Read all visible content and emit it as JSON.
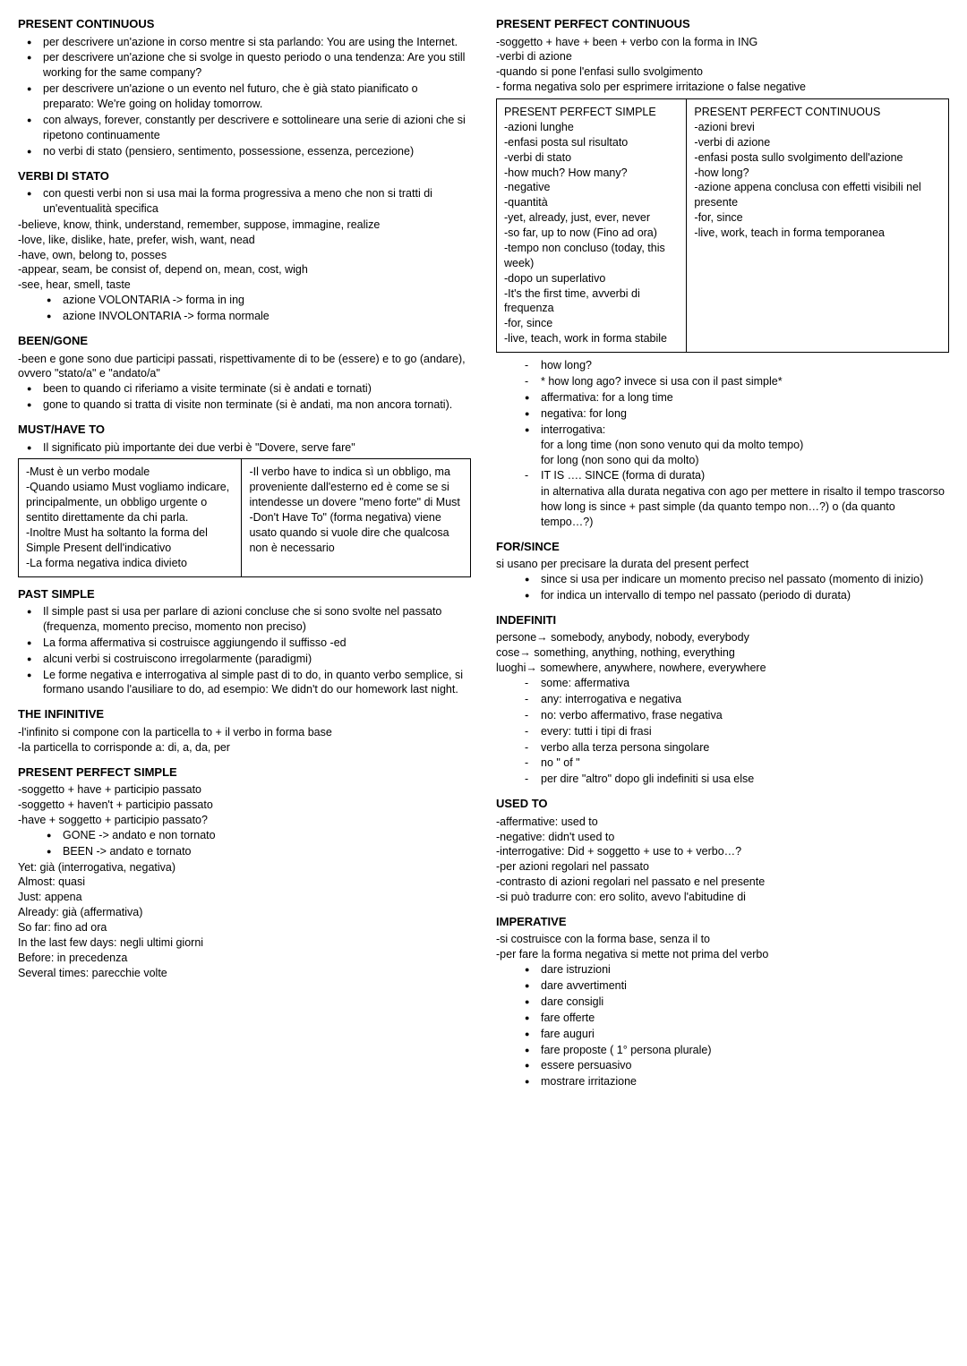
{
  "left": {
    "s1": {
      "h": "PRESENT CONTINUOUS",
      "li": [
        "per descrivere un'azione in corso mentre si sta parlando: You are using the Internet.",
        "per descrivere un'azione che si svolge in questo periodo o una tendenza: Are you still working for the same company?",
        "per descrivere un'azione o un evento nel futuro, che è già stato pianificato o preparato: We're going on holiday tomorrow.",
        "con always, forever, constantly per descrivere e sottolineare una serie di azioni che si ripetono continuamente",
        "no verbi di stato (pensiero, sentimento, possessione, essenza, percezione)"
      ]
    },
    "s2": {
      "h": "VERBI DI STATO",
      "li": [
        "con questi verbi non si usa mai la forma progressiva a meno che non si tratti di un'eventualità specifica"
      ],
      "p": [
        "-believe, know, think, understand, remember, suppose, immagine, realize",
        "-love, like, dislike, hate, prefer, wish, want, nead",
        "-have, own, belong to, posses",
        "-appear, seam, be consist of, depend on, mean, cost, wigh",
        "-see, hear, smell, taste"
      ],
      "li2": [
        "azione VOLONTARIA -> forma in ing",
        "azione INVOLONTARIA -> forma normale"
      ]
    },
    "s3": {
      "h": "BEEN/GONE",
      "p": [
        "-been e gone sono due participi passati, rispettivamente di to be (essere) e to go (andare), ovvero \"stato/a\" e \"andato/a\""
      ],
      "li": [
        "been to quando ci riferiamo a visite terminate (si è andati e tornati)",
        "gone to quando si tratta di visite non terminate (si è andati, ma non ancora tornati)."
      ]
    },
    "s4": {
      "h": "MUST/HAVE TO",
      "li": [
        "Il significato più importante dei due verbi è \"Dovere, serve fare\""
      ],
      "t": {
        "l": "-Must è un verbo modale\n-Quando usiamo Must vogliamo indicare, principalmente, un obbligo urgente o sentito direttamente da chi parla.\n-Inoltre Must ha soltanto la forma del Simple Present dell'indicativo\n-La forma negativa indica divieto",
        "r": "-Il verbo have to indica sì un obbligo, ma proveniente dall'esterno ed è come se si intendesse un dovere \"meno forte\" di Must\n-Don't Have To\" (forma negativa) viene usato quando si vuole dire che qualcosa non è necessario"
      }
    },
    "s5": {
      "h": "PAST SIMPLE",
      "li": [
        "Il simple past si usa per parlare di azioni concluse che si sono svolte nel passato (frequenza, momento preciso, momento non preciso)",
        "La forma affermativa si costruisce aggiungendo il suffisso -ed",
        "alcuni verbi si costruiscono irregolarmente (paradigmi)",
        "Le forme negativa e interrogativa al simple past di to do, in quanto verbo semplice, si formano usando l'ausiliare to do, ad esempio: We didn't do our homework last night."
      ]
    },
    "s6": {
      "h": "THE INFINITIVE",
      "p": [
        "-l'infinito si compone con la particella to + il verbo in forma base",
        "-la particella to corrisponde a: di, a, da, per"
      ]
    },
    "s7": {
      "h": "PRESENT PERFECT SIMPLE",
      "p": [
        "-soggetto + have + participio passato",
        "-soggetto + haven't + participio passato",
        "-have + soggetto + participio passato?"
      ],
      "li": [
        "GONE -> andato e non tornato",
        "BEEN -> andato e tornato"
      ],
      "p2": [
        "Yet: già (interrogativa, negativa)",
        "Almost: quasi",
        "Just: appena",
        "Already: già (affermativa)",
        "So far: fino ad ora",
        "In the last few days: negli ultimi giorni",
        "Before: in precedenza",
        "Several times: parecchie volte"
      ]
    }
  },
  "right": {
    "s1": {
      "h": "PRESENT PERFECT CONTINUOUS",
      "p": [
        "-soggetto + have + been + verbo con la forma in ING",
        "-verbi di azione",
        "-quando si pone l'enfasi sullo svolgimento",
        "- forma negativa solo per esprimere irritazione o false negative"
      ],
      "t": {
        "l": "PRESENT PERFECT SIMPLE\n-azioni lunghe\n-enfasi posta sul risultato\n-verbi di stato\n-how much? How many?\n-negative\n-quantità\n-yet, already, just, ever, never\n-so far, up to now (Fino ad ora)\n-tempo non concluso (today, this week)\n-dopo un superlativo\n-It's the first time, avverbi di frequenza\n-for, since\n-live, teach, work in forma stabile",
        "r": "PRESENT PERFECT CONTINUOUS\n-azioni brevi\n-verbi di azione\n-enfasi posta sullo svolgimento dell'azione\n-how long?\n-azione appena conclusa con effetti visibili nel presente\n-for, since\n-live, work, teach in forma temporanea"
      },
      "d": [
        "how long?",
        "* how long ago? invece si usa con il past simple*"
      ],
      "b": [
        "affermativa: for a long time",
        "negativa: for long",
        "interrogativa:"
      ],
      "sub1": [
        "for a long time (non sono venuto qui da molto tempo)",
        "for long (non sono qui da molto)"
      ],
      "d2": [
        "IT IS …. SINCE (forma di durata)"
      ],
      "sub2": [
        "in alternativa alla durata negativa con ago per mettere in risalto il tempo trascorso",
        "how long is since + past simple (da quanto tempo non…?) o (da quanto tempo…?)"
      ]
    },
    "s2": {
      "h": "FOR/SINCE",
      "p": [
        "si usano per precisare la durata del present perfect"
      ],
      "li": [
        "since si usa per indicare un momento preciso nel passato (momento di inizio)",
        "for indica un intervallo di tempo nel passato (periodo di durata)"
      ]
    },
    "s3": {
      "h": "INDEFINITI",
      "p": [
        "persone→ somebody, anybody, nobody, everybody",
        "cose→ something, anything, nothing, everything",
        "luoghi→ somewhere, anywhere, nowhere, everywhere"
      ],
      "li": [
        "some: affermativa",
        "any: interrogativa e negativa",
        "no: verbo affermativo, frase negativa",
        "every: tutti i tipi di frasi",
        "verbo alla terza persona singolare",
        "no \" of \"",
        "per dire \"altro\" dopo gli indefiniti si usa else"
      ]
    },
    "s4": {
      "h": "USED TO",
      "p": [
        "-affermative: used to",
        "-negative: didn't used to",
        "-interrogative: Did + soggetto + use to + verbo…?",
        "-per azioni regolari nel passato",
        "-contrasto di azioni regolari nel passato e nel presente",
        "-si può tradurre con: ero solito, avevo l'abitudine di"
      ]
    },
    "s5": {
      "h": "IMPERATIVE",
      "p": [
        "-si costruisce con la forma base, senza il to",
        "-per fare la forma negativa si mette not prima del verbo"
      ],
      "li": [
        "dare istruzioni",
        "dare avvertimenti",
        "dare consigli",
        "fare offerte",
        "fare auguri",
        "fare proposte ( 1° persona plurale)",
        "essere persuasivo",
        "mostrare irritazione"
      ]
    }
  }
}
